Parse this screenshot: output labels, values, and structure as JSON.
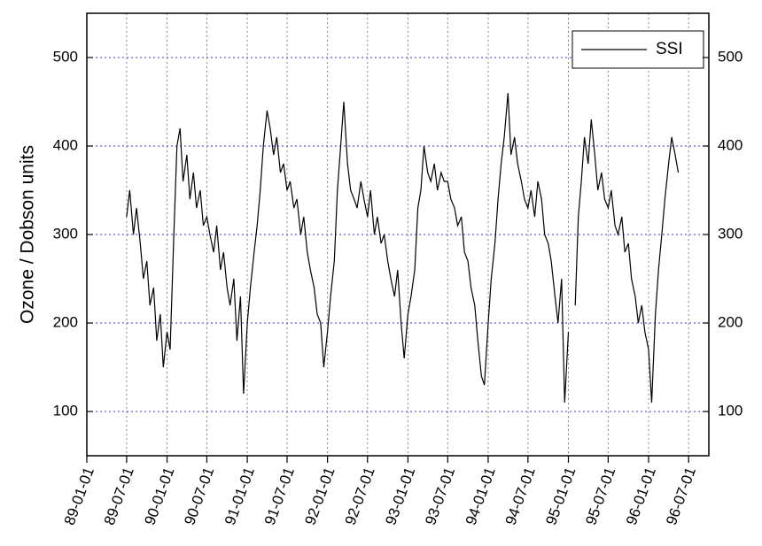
{
  "chart_data": {
    "type": "line",
    "ylabel": "Ozone / Dobson units",
    "ylim": [
      50,
      550
    ],
    "yticks": [
      100,
      200,
      300,
      400,
      500
    ],
    "xlim": [
      "1989-01-01",
      "1996-10-01"
    ],
    "xticks": [
      {
        "value": "1989-01-01",
        "label": "89-01-01"
      },
      {
        "value": "1989-07-01",
        "label": "89-07-01"
      },
      {
        "value": "1990-01-01",
        "label": "90-01-01"
      },
      {
        "value": "1990-07-01",
        "label": "90-07-01"
      },
      {
        "value": "1991-01-01",
        "label": "91-01-01"
      },
      {
        "value": "1991-07-01",
        "label": "91-07-01"
      },
      {
        "value": "1992-01-01",
        "label": "92-01-01"
      },
      {
        "value": "1992-07-01",
        "label": "92-07-01"
      },
      {
        "value": "1993-01-01",
        "label": "93-01-01"
      },
      {
        "value": "1993-07-01",
        "label": "93-07-01"
      },
      {
        "value": "1994-01-01",
        "label": "94-01-01"
      },
      {
        "value": "1994-07-01",
        "label": "94-07-01"
      },
      {
        "value": "1995-01-01",
        "label": "95-01-01"
      },
      {
        "value": "1995-07-01",
        "label": "95-07-01"
      },
      {
        "value": "1996-01-01",
        "label": "96-01-01"
      },
      {
        "value": "1996-07-01",
        "label": "96-07-01"
      }
    ],
    "grid": true,
    "legend": "upper right",
    "x": [
      "1989-07-01",
      "1989-07-15",
      "1989-08-01",
      "1989-08-15",
      "1989-09-01",
      "1989-09-15",
      "1989-10-01",
      "1989-10-15",
      "1989-11-01",
      "1989-11-15",
      "1989-12-01",
      "1989-12-15",
      "1990-01-01",
      "1990-01-15",
      "1990-02-01",
      "1990-02-15",
      "1990-03-01",
      "1990-03-15",
      "1990-04-01",
      "1990-04-15",
      "1990-05-01",
      "1990-05-15",
      "1990-06-01",
      "1990-06-15",
      "1990-07-01",
      "1990-07-15",
      "1990-08-01",
      "1990-08-15",
      "1990-09-01",
      "1990-09-15",
      "1990-10-01",
      "1990-10-15",
      "1990-11-01",
      "1990-11-15",
      "1990-12-01",
      "1990-12-15",
      "1991-01-01",
      "1991-01-15",
      "1991-02-01",
      "1991-02-15",
      "1991-03-01",
      "1991-03-15",
      "1991-04-01",
      "1991-04-15",
      "1991-05-01",
      "1991-05-15",
      "1991-06-01",
      "1991-06-15",
      "1991-07-01",
      "1991-07-15",
      "1991-08-01",
      "1991-08-15",
      "1991-09-01",
      "1991-09-15",
      "1991-10-01",
      "1991-10-15",
      "1991-11-01",
      "1991-11-15",
      "1991-12-01",
      "1991-12-15",
      "1992-01-01",
      "1992-01-15",
      "1992-02-01",
      "1992-02-15",
      "1992-03-01",
      "1992-03-15",
      "1992-04-01",
      "1992-04-15",
      "1992-05-01",
      "1992-05-15",
      "1992-06-01",
      "1992-06-15",
      "1992-07-01",
      "1992-07-15",
      "1992-08-01",
      "1992-08-15",
      "1992-09-01",
      "1992-09-15",
      "1992-10-01",
      "1992-10-15",
      "1992-11-01",
      "1992-11-15",
      "1992-12-01",
      "1992-12-15",
      "1993-01-01",
      "1993-01-15",
      "1993-02-01",
      "1993-02-15",
      "1993-03-01",
      "1993-03-15",
      "1993-04-01",
      "1993-04-15",
      "1993-05-01",
      "1993-05-15",
      "1993-06-01",
      "1993-06-15",
      "1993-07-01",
      "1993-07-15",
      "1993-08-01",
      "1993-08-15",
      "1993-09-01",
      "1993-09-15",
      "1993-10-01",
      "1993-10-15",
      "1993-11-01",
      "1993-11-15",
      "1993-12-01",
      "1993-12-15",
      "1994-01-01",
      "1994-01-15",
      "1994-02-01",
      "1994-02-15",
      "1994-03-01",
      "1994-03-15",
      "1994-04-01",
      "1994-04-15",
      "1994-05-01",
      "1994-05-15",
      "1994-06-01",
      "1994-06-15",
      "1994-07-01",
      "1994-07-15",
      "1994-08-01",
      "1994-08-15",
      "1994-09-01",
      "1994-09-15",
      "1994-10-01",
      "1994-10-15",
      "1994-11-01",
      "1994-11-15",
      "1994-12-01",
      "1994-12-15",
      "1995-01-01",
      "1995-01-15",
      "1995-02-01",
      "1995-02-15",
      "1995-03-01",
      "1995-03-15",
      "1995-04-01",
      "1995-04-15",
      "1995-05-01",
      "1995-05-15",
      "1995-06-01",
      "1995-06-15",
      "1995-07-01",
      "1995-07-15",
      "1995-08-01",
      "1995-08-15",
      "1995-09-01",
      "1995-09-15",
      "1995-10-01",
      "1995-10-15",
      "1995-11-01",
      "1995-11-15",
      "1995-12-01",
      "1995-12-15",
      "1996-01-01",
      "1996-01-15",
      "1996-02-01",
      "1996-02-15",
      "1996-03-01",
      "1996-03-15",
      "1996-04-01",
      "1996-04-15",
      "1996-05-01",
      "1996-05-15"
    ],
    "series": [
      {
        "name": "SSI",
        "color": "#000000",
        "values": [
          320,
          350,
          300,
          330,
          290,
          250,
          270,
          220,
          240,
          180,
          210,
          150,
          190,
          170,
          300,
          400,
          420,
          360,
          390,
          340,
          370,
          330,
          350,
          310,
          320,
          300,
          280,
          310,
          260,
          280,
          240,
          220,
          250,
          180,
          230,
          120,
          200,
          240,
          280,
          310,
          350,
          400,
          440,
          420,
          390,
          410,
          370,
          380,
          350,
          360,
          330,
          340,
          300,
          320,
          280,
          260,
          240,
          210,
          200,
          150,
          190,
          230,
          270,
          350,
          400,
          450,
          380,
          350,
          340,
          330,
          360,
          340,
          320,
          350,
          300,
          320,
          290,
          300,
          270,
          250,
          230,
          260,
          200,
          160,
          210,
          230,
          260,
          330,
          350,
          400,
          370,
          360,
          380,
          350,
          370,
          360,
          360,
          340,
          330,
          310,
          320,
          280,
          270,
          240,
          220,
          180,
          140,
          130,
          200,
          250,
          290,
          340,
          380,
          410,
          460,
          390,
          410,
          380,
          360,
          340,
          330,
          350,
          320,
          360,
          340,
          300,
          290,
          270,
          230,
          200,
          250,
          110,
          190,
          null,
          220,
          320,
          360,
          410,
          380,
          430,
          390,
          350,
          370,
          340,
          330,
          350,
          310,
          300,
          320,
          280,
          290,
          250,
          230,
          200,
          220,
          190,
          170,
          110,
          210,
          260,
          300,
          340,
          380,
          410,
          390,
          370
        ]
      }
    ]
  }
}
